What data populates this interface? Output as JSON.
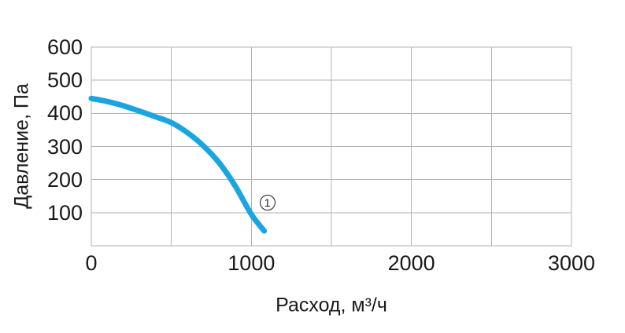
{
  "chart_data": {
    "type": "line",
    "title": "",
    "xlabel": "Расход, м³/ч",
    "ylabel": "Давление, Па",
    "xlim": [
      0,
      3000
    ],
    "ylim": [
      0,
      600
    ],
    "xticks": [
      0,
      1000,
      2000,
      3000
    ],
    "yticks": [
      100,
      200,
      300,
      400,
      500,
      600
    ],
    "x_gridline_step": 500,
    "y_gridline_step": 100,
    "grid": true,
    "legend": "none",
    "series": [
      {
        "name": "1",
        "x": [
          0,
          100,
          200,
          300,
          400,
          500,
          600,
          700,
          800,
          900,
          1000,
          1080
        ],
        "y": [
          445,
          436,
          423,
          407,
          390,
          372,
          342,
          302,
          250,
          180,
          95,
          45
        ],
        "color": "#1aa5e1",
        "marker": {
          "label": "1",
          "x": 1100,
          "y": 130
        }
      }
    ],
    "colors": {
      "curve": "#1aa5e1",
      "grid": "#b3b3b3",
      "text": "#1a1a1a",
      "background": "#ffffff"
    }
  }
}
